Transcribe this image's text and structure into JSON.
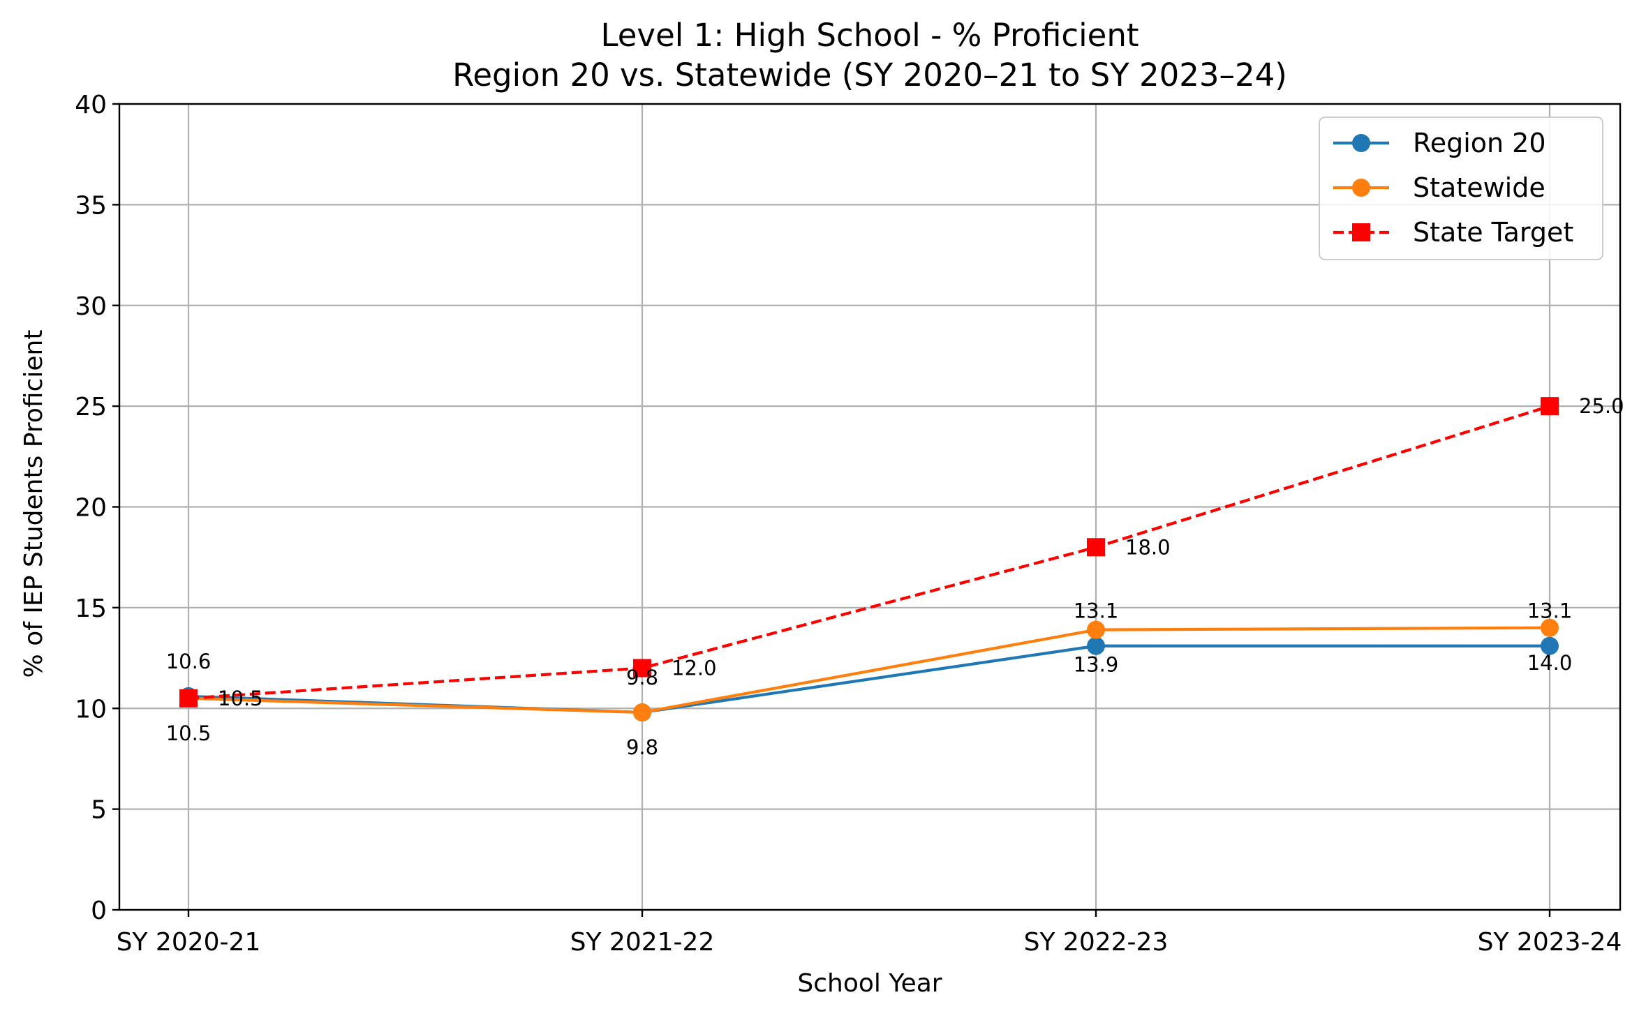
{
  "chart_data": {
    "type": "line",
    "title": "Level 1: High School - % Proficient",
    "subtitle": "Region 20 vs. Statewide (SY 2020–21 to SY 2023–24)",
    "xlabel": "School Year",
    "ylabel": "% of IEP Students Proficient",
    "categories": [
      "SY 2020-21",
      "SY 2021-22",
      "SY 2022-23",
      "SY 2023-24"
    ],
    "ylim": [
      0,
      40
    ],
    "yticks": [
      0,
      5,
      10,
      15,
      20,
      25,
      30,
      35,
      40
    ],
    "grid": true,
    "legend_position": "top-right",
    "series": [
      {
        "name": "Region 20",
        "values": [
          10.6,
          9.8,
          13.1,
          13.1
        ],
        "color": "#1f77b4",
        "marker": "circle",
        "linestyle": "solid",
        "labels": [
          "10.6",
          "9.8",
          "13.1",
          "13.1"
        ],
        "label_placement": "above"
      },
      {
        "name": "Statewide",
        "values": [
          10.5,
          9.8,
          13.9,
          14.0
        ],
        "color": "#ff7f0e",
        "marker": "circle",
        "linestyle": "solid",
        "labels": [
          "10.5",
          "9.8",
          "13.9",
          "14.0"
        ],
        "label_placement": "below"
      },
      {
        "name": "State Target",
        "values": [
          10.5,
          12.0,
          18.0,
          25.0
        ],
        "color": "#ff0000",
        "marker": "square",
        "linestyle": "dashed",
        "labels": [
          "10.5",
          "12.0",
          "18.0",
          "25.0"
        ],
        "label_placement": "right"
      }
    ]
  }
}
